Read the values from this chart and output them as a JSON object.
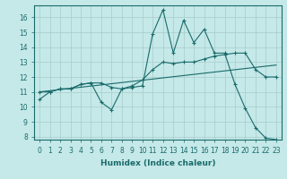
{
  "title": "",
  "xlabel": "Humidex (Indice chaleur)",
  "background_color": "#c5e8e8",
  "grid_color": "#a8cccc",
  "line_color": "#1a6b6b",
  "xlim": [
    -0.5,
    23.5
  ],
  "ylim": [
    7.8,
    16.8
  ],
  "yticks": [
    8,
    9,
    10,
    11,
    12,
    13,
    14,
    15,
    16
  ],
  "xticks": [
    0,
    1,
    2,
    3,
    4,
    5,
    6,
    7,
    8,
    9,
    10,
    11,
    12,
    13,
    14,
    15,
    16,
    17,
    18,
    19,
    20,
    21,
    22,
    23
  ],
  "line1_x": [
    0,
    1,
    2,
    3,
    4,
    5,
    6,
    7,
    8,
    9,
    10,
    11,
    12,
    13,
    14,
    15,
    16,
    17,
    18,
    19,
    20,
    21,
    22,
    23
  ],
  "line1_y": [
    10.5,
    11.0,
    11.2,
    11.2,
    11.5,
    11.6,
    10.3,
    9.8,
    11.2,
    11.3,
    11.4,
    14.9,
    16.5,
    13.6,
    15.8,
    14.3,
    15.2,
    13.6,
    13.6,
    11.5,
    9.9,
    8.6,
    7.9,
    7.8
  ],
  "line2_x": [
    0,
    1,
    2,
    3,
    4,
    5,
    6,
    7,
    8,
    9,
    10,
    11,
    12,
    13,
    14,
    15,
    16,
    17,
    18,
    19,
    20,
    21,
    22,
    23
  ],
  "line2_y": [
    11.0,
    11.0,
    11.2,
    11.2,
    11.5,
    11.6,
    11.6,
    11.3,
    11.2,
    11.4,
    11.8,
    12.5,
    13.0,
    12.9,
    13.0,
    13.0,
    13.2,
    13.4,
    13.5,
    13.6,
    13.6,
    12.5,
    12.0,
    12.0
  ],
  "line3_x": [
    0,
    23
  ],
  "line3_y": [
    11.0,
    12.8
  ],
  "xlabel_fontsize": 6.5,
  "tick_fontsize": 5.5
}
